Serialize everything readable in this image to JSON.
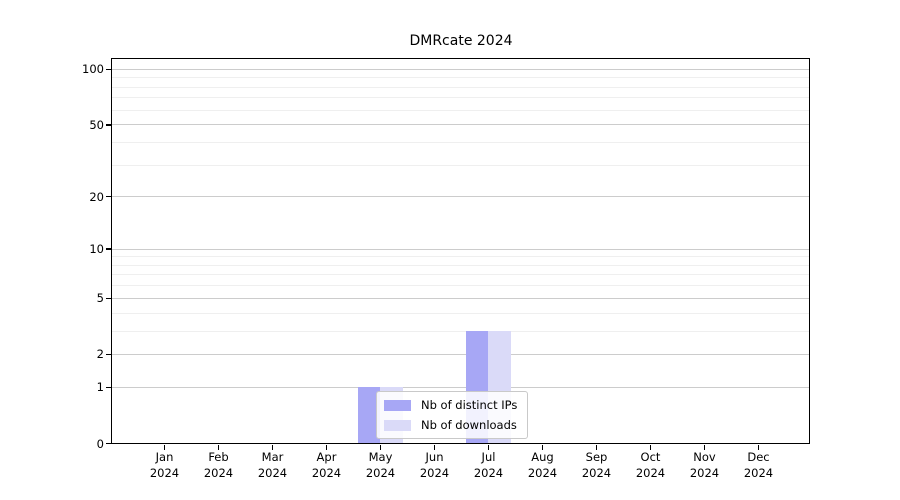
{
  "chart_data": {
    "type": "bar",
    "title": "DMRcate 2024",
    "categories": [
      {
        "month": "Jan",
        "year": "2024"
      },
      {
        "month": "Feb",
        "year": "2024"
      },
      {
        "month": "Mar",
        "year": "2024"
      },
      {
        "month": "Apr",
        "year": "2024"
      },
      {
        "month": "May",
        "year": "2024"
      },
      {
        "month": "Jun",
        "year": "2024"
      },
      {
        "month": "Jul",
        "year": "2024"
      },
      {
        "month": "Aug",
        "year": "2024"
      },
      {
        "month": "Sep",
        "year": "2024"
      },
      {
        "month": "Oct",
        "year": "2024"
      },
      {
        "month": "Nov",
        "year": "2024"
      },
      {
        "month": "Dec",
        "year": "2024"
      }
    ],
    "series": [
      {
        "name": "Nb of distinct IPs",
        "color": "#a7a7f5",
        "values": [
          0,
          0,
          0,
          0,
          1,
          0,
          3,
          0,
          0,
          0,
          0,
          0
        ]
      },
      {
        "name": "Nb of downloads",
        "color": "#dadaf8",
        "values": [
          0,
          0,
          0,
          0,
          1,
          0,
          3,
          0,
          0,
          0,
          0,
          0
        ]
      }
    ],
    "y_scale": "log1p",
    "y_ticks": [
      0,
      1,
      2,
      5,
      10,
      20,
      50,
      100
    ],
    "y_minor_gridlines": [
      3,
      4,
      6,
      7,
      8,
      9,
      30,
      40,
      60,
      70,
      80,
      90
    ],
    "ylim": [
      0,
      113
    ],
    "xlabel": "",
    "ylabel": "",
    "grid": true,
    "legend_position": "lower-center-inside"
  },
  "colors": {
    "major_grid": "#cccccc",
    "minor_grid": "#efefef",
    "axis": "#000000",
    "background": "#ffffff"
  }
}
